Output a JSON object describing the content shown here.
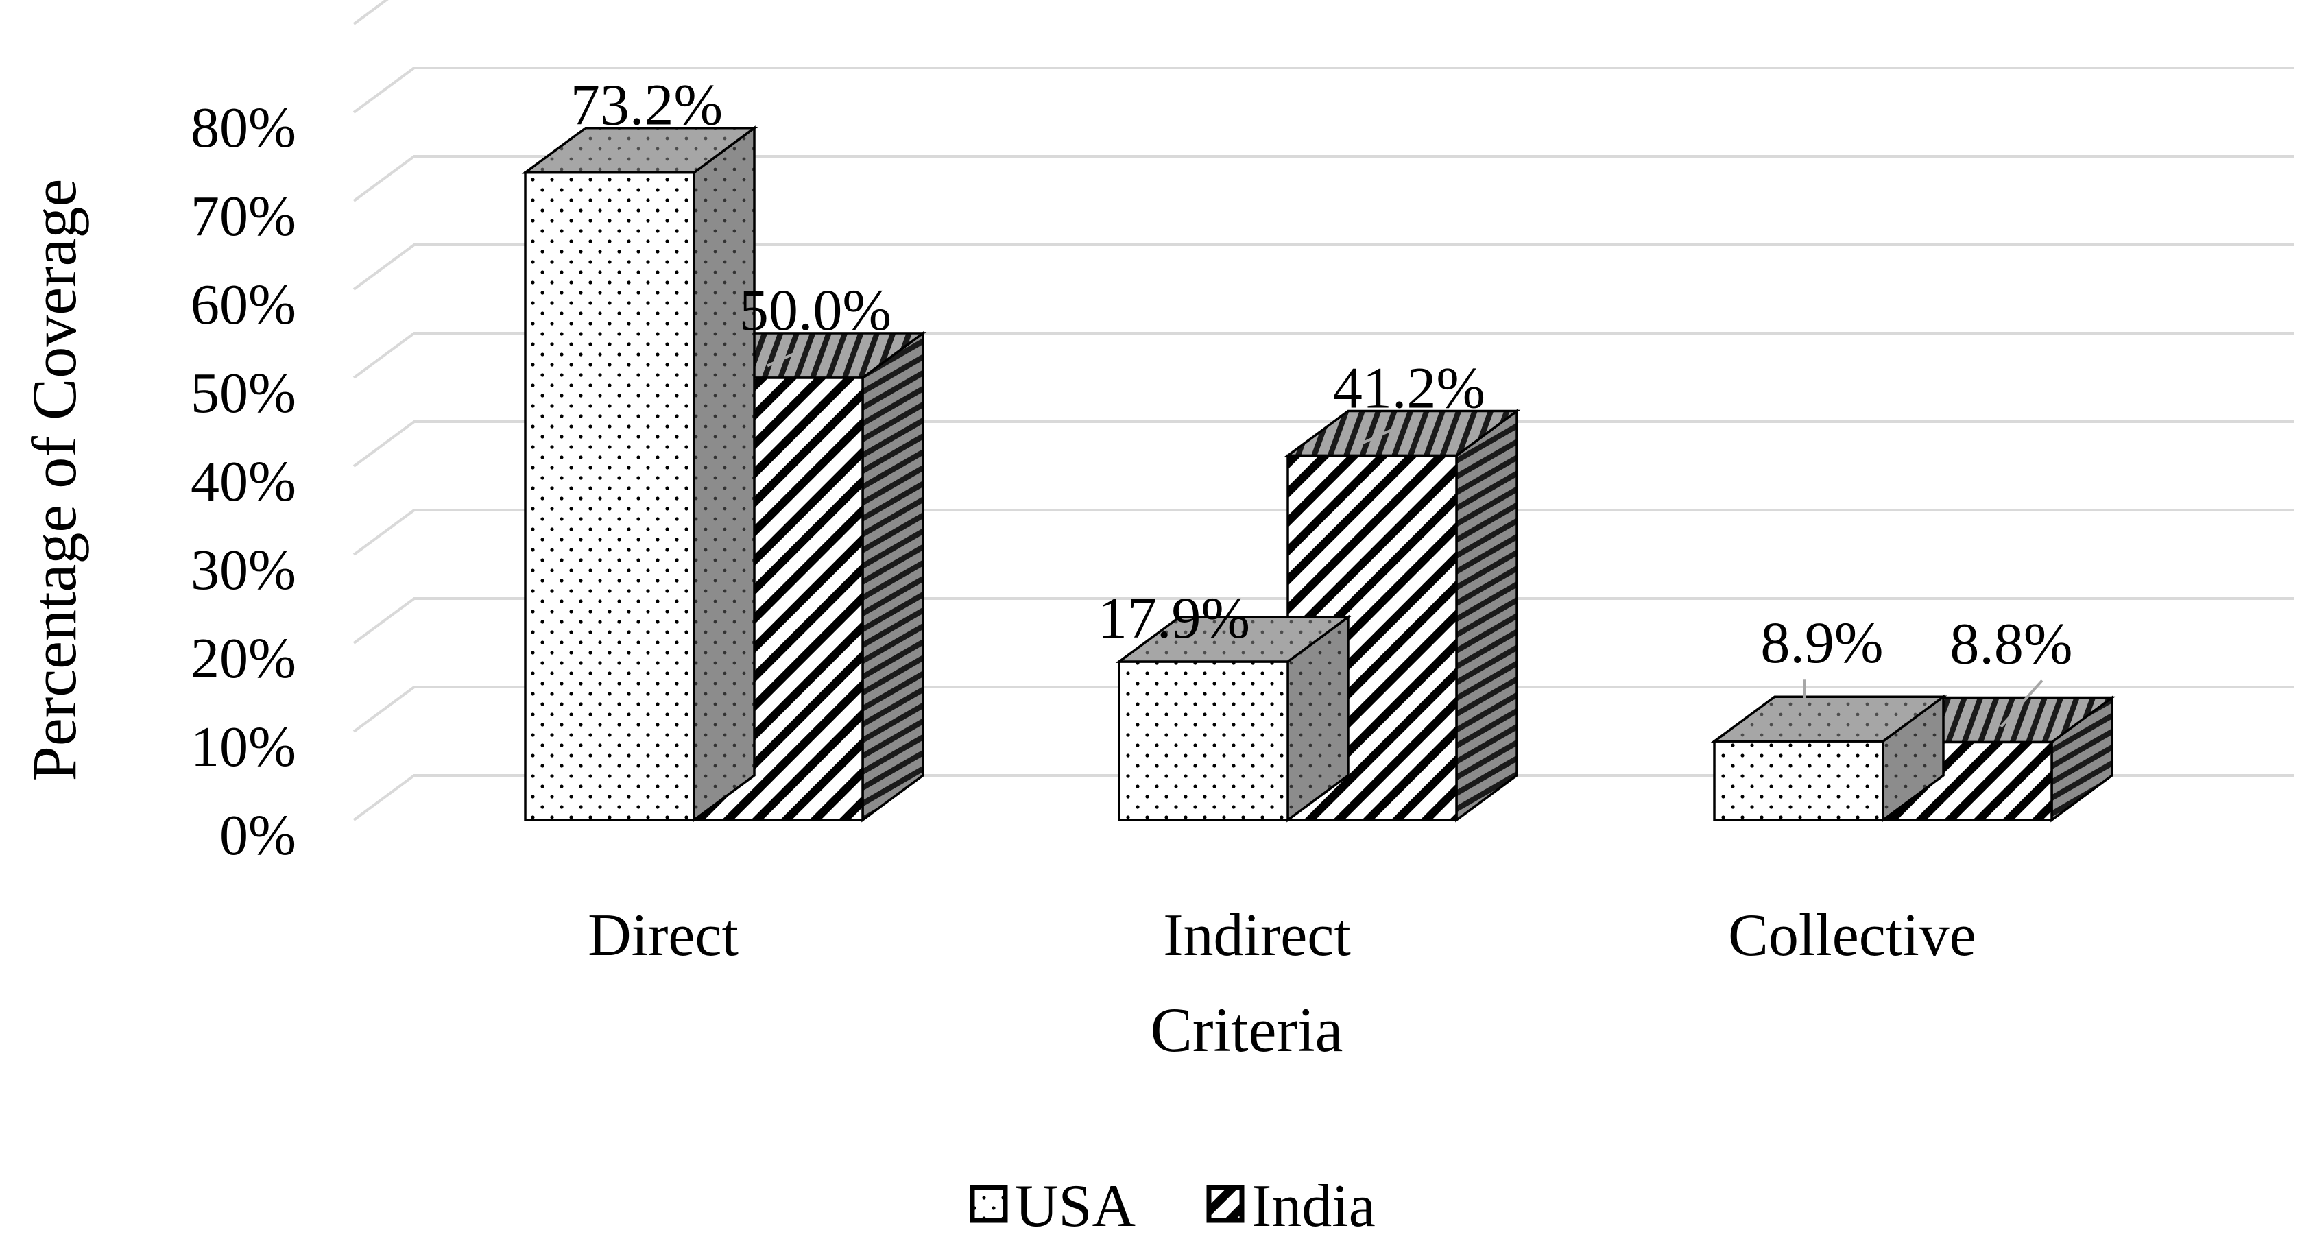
{
  "chart_data": {
    "type": "bar",
    "style": "3d-clustered-column",
    "title": "",
    "xlabel": "Criteria",
    "ylabel": "Percentage of Coverage",
    "ylim": [
      0,
      80
    ],
    "yticks": [
      "0%",
      "10%",
      "20%",
      "30%",
      "40%",
      "50%",
      "60%",
      "70%",
      "80%"
    ],
    "categories": [
      "Direct",
      "Indirect",
      "Collective"
    ],
    "series": [
      {
        "name": "USA",
        "pattern": "dots",
        "values": [
          73.2,
          17.9,
          8.9
        ],
        "labels": [
          "73.2%",
          "17.9%",
          "8.9%"
        ]
      },
      {
        "name": "India",
        "pattern": "diagonal-stripes",
        "values": [
          50.0,
          41.2,
          8.8
        ],
        "labels": [
          "50.0%",
          "41.2%",
          "8.8%"
        ]
      }
    ],
    "grid": true,
    "legend_position": "bottom",
    "colors": {
      "gridline": "#d9d9d9",
      "bar_outline": "#000000",
      "top_face": "#a6a6a6",
      "side_face": "#7f7f7f",
      "leader_line": "#a6a6a6"
    }
  }
}
